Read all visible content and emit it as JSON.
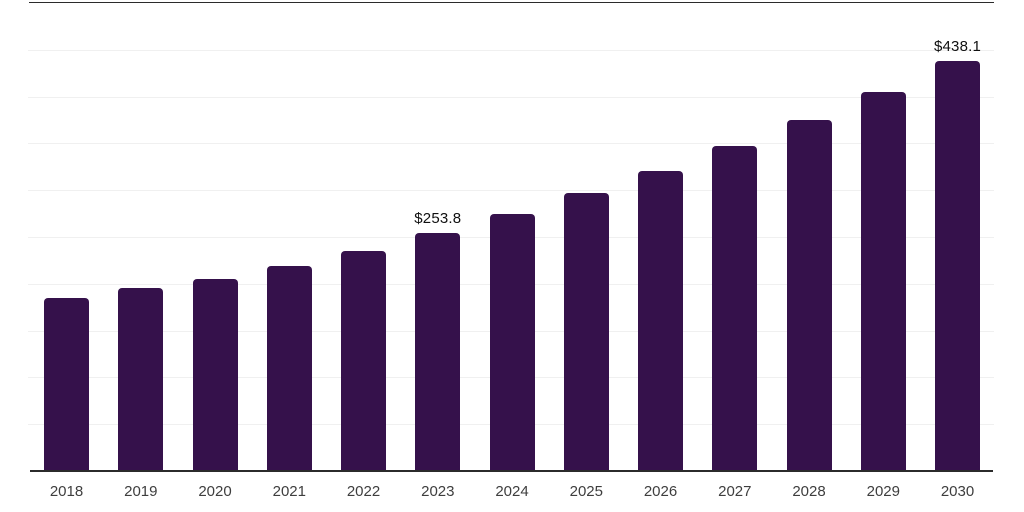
{
  "chart_data": {
    "type": "bar",
    "title": "",
    "xlabel": "",
    "ylabel": "",
    "categories": [
      "2018",
      "2019",
      "2020",
      "2021",
      "2022",
      "2023",
      "2024",
      "2025",
      "2026",
      "2027",
      "2028",
      "2029",
      "2030"
    ],
    "values": [
      185.3,
      195.9,
      204.9,
      219.5,
      235.1,
      253.8,
      274.4,
      296.7,
      320.7,
      346.8,
      374.9,
      405.3,
      438.1
    ],
    "data_labels": [
      "",
      "",
      "",
      "",
      "",
      "$253.8",
      "",
      "",
      "",
      "",
      "",
      "",
      "$438.1"
    ],
    "currency_prefix": "$",
    "ylim": [
      0,
      500
    ],
    "grid_interval": 50,
    "grid": "on",
    "legend": "none",
    "y_axis_labels_visible": false,
    "bar_color": "#35114B",
    "grid_color": "#F0F0F0",
    "axis_color": "#2B2B2B",
    "tick_label_color": "#3E3E3E",
    "value_label_color": "#101010",
    "background_color": "#FFFFFF"
  }
}
